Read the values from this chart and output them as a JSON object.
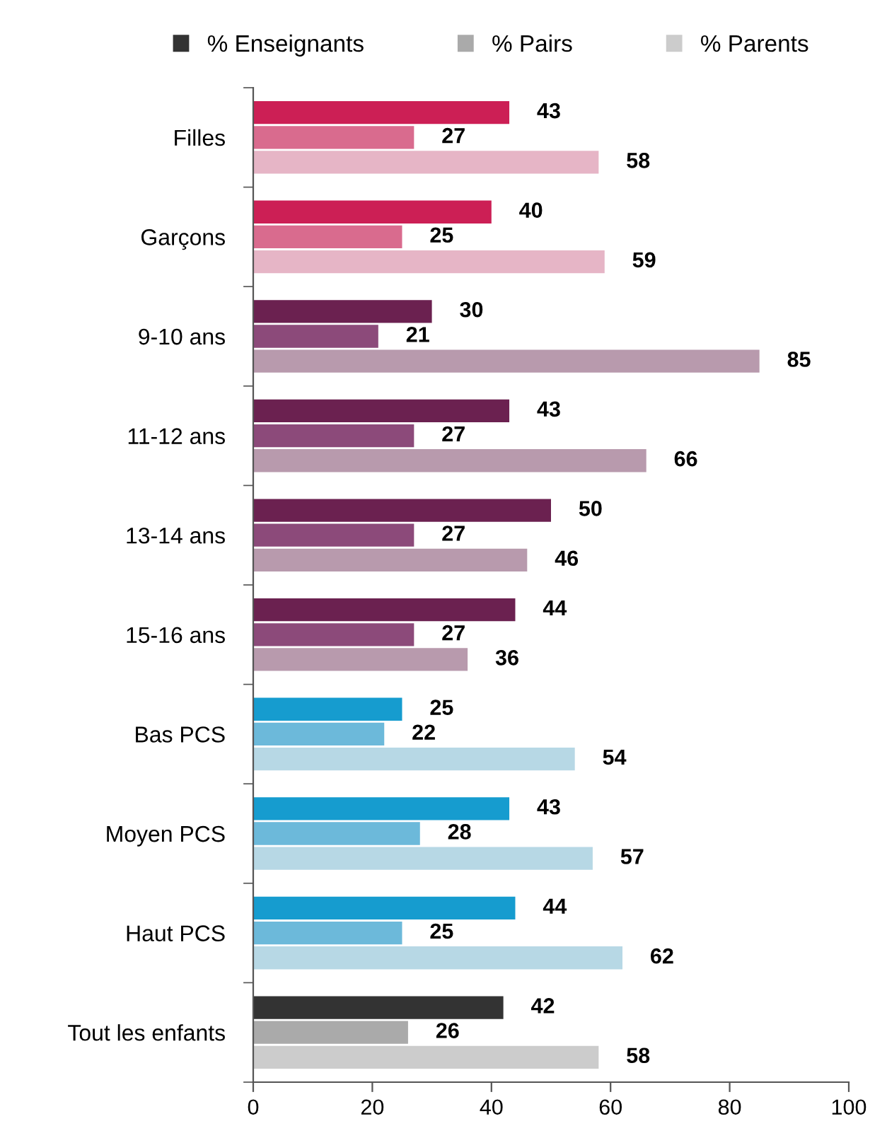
{
  "chart_data": {
    "type": "bar",
    "orientation": "horizontal",
    "categories": [
      "Filles",
      "Garçons",
      "9-10 ans",
      "11-12 ans",
      "13-14 ans",
      "15-16 ans",
      "Bas PCS",
      "Moyen PCS",
      "Haut PCS",
      "Tout les enfants"
    ],
    "series": [
      {
        "name": "% Enseignants",
        "color": "#333333",
        "values": [
          43,
          40,
          30,
          43,
          50,
          44,
          25,
          43,
          44,
          42
        ],
        "colors": [
          "#cc1f55",
          "#cc1f55",
          "#6b2150",
          "#6b2150",
          "#6b2150",
          "#6b2150",
          "#169ccf",
          "#169ccf",
          "#169ccf",
          "#333333"
        ]
      },
      {
        "name": "% Pairs",
        "color": "#aaaaaa",
        "values": [
          27,
          25,
          21,
          27,
          27,
          27,
          22,
          28,
          25,
          26
        ],
        "colors": [
          "#d96b8e",
          "#d96b8e",
          "#8c4a7a",
          "#8c4a7a",
          "#8c4a7a",
          "#8c4a7a",
          "#6cb9da",
          "#6cb9da",
          "#6cb9da",
          "#aaaaaa"
        ]
      },
      {
        "name": "% Parents",
        "color": "#cccccc",
        "values": [
          58,
          59,
          85,
          66,
          46,
          36,
          54,
          57,
          62,
          58
        ],
        "colors": [
          "#e6b5c6",
          "#e6b5c6",
          "#b89aad",
          "#b89aad",
          "#b89aad",
          "#b89aad",
          "#b7d8e5",
          "#b7d8e5",
          "#b7d8e5",
          "#cccccc"
        ]
      }
    ],
    "xlim": [
      0,
      100
    ],
    "xticks": [
      0,
      20,
      40,
      60,
      80,
      100
    ],
    "data_labels": true,
    "grid": false,
    "legend": "top"
  }
}
